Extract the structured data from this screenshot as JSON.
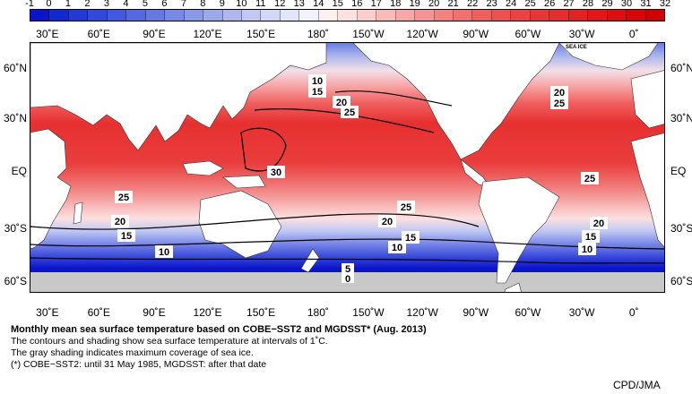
{
  "colorbar": {
    "ticks": [
      "-1",
      "0",
      "1",
      "2",
      "3",
      "4",
      "5",
      "6",
      "7",
      "8",
      "9",
      "10",
      "11",
      "12",
      "13",
      "14",
      "15",
      "16",
      "17",
      "18",
      "19",
      "20",
      "21",
      "22",
      "23",
      "24",
      "25",
      "26",
      "27",
      "28",
      "29",
      "30",
      "31",
      "32"
    ],
    "colors": [
      "#0a14c8",
      "#1428d2",
      "#2338d8",
      "#3248dc",
      "#4358e0",
      "#5468e2",
      "#6578e4",
      "#7788e6",
      "#8a98e9",
      "#9ca8ec",
      "#aeb8ef",
      "#c0c8f3",
      "#d2d8f6",
      "#e2e6f9",
      "#f1f3fc",
      "#fff0f0",
      "#fde0e0",
      "#fbcdcd",
      "#f9baba",
      "#f7a7a7",
      "#f59494",
      "#f38282",
      "#f17070",
      "#ef5f5f",
      "#ed5050",
      "#eb4343",
      "#e93737",
      "#e72c2c",
      "#e42222",
      "#e11818",
      "#dd0f0f",
      "#d80606",
      "#d10000"
    ]
  },
  "longitude_labels": [
    "30˚E",
    "60˚E",
    "90˚E",
    "120˚E",
    "150˚E",
    "180˚",
    "150˚W",
    "120˚W",
    "90˚W",
    "60˚W",
    "30˚W",
    "0˚"
  ],
  "latitude_labels": [
    "60˚N",
    "30˚N",
    "EQ",
    "30˚S",
    "60˚S"
  ],
  "map": {
    "contour_labels": [
      "30",
      "25",
      "20",
      "15",
      "10",
      "5",
      "0",
      "25",
      "20",
      "15",
      "10",
      "20",
      "25",
      "25",
      "20",
      "15",
      "10",
      "25",
      "20",
      "15",
      "10"
    ],
    "sea_ice_label": "SEA ICE",
    "colors": {
      "land": "#ffffff",
      "sea_ice": "#c8c8c8",
      "contour": "#000000"
    }
  },
  "caption": {
    "title": "Monthly mean sea surface temperature based on COBE−SST2 and MGDSST* (Aug. 2013)",
    "line1": "The contours and shading show sea surface temperature at intervals of 1˚C.",
    "line2": "The gray shading indicates maximum coverage of sea ice.",
    "line3": "(*) COBE−SST2: until 31 May 1985, MGDSST: after that date"
  },
  "credit": "CPD/JMA"
}
